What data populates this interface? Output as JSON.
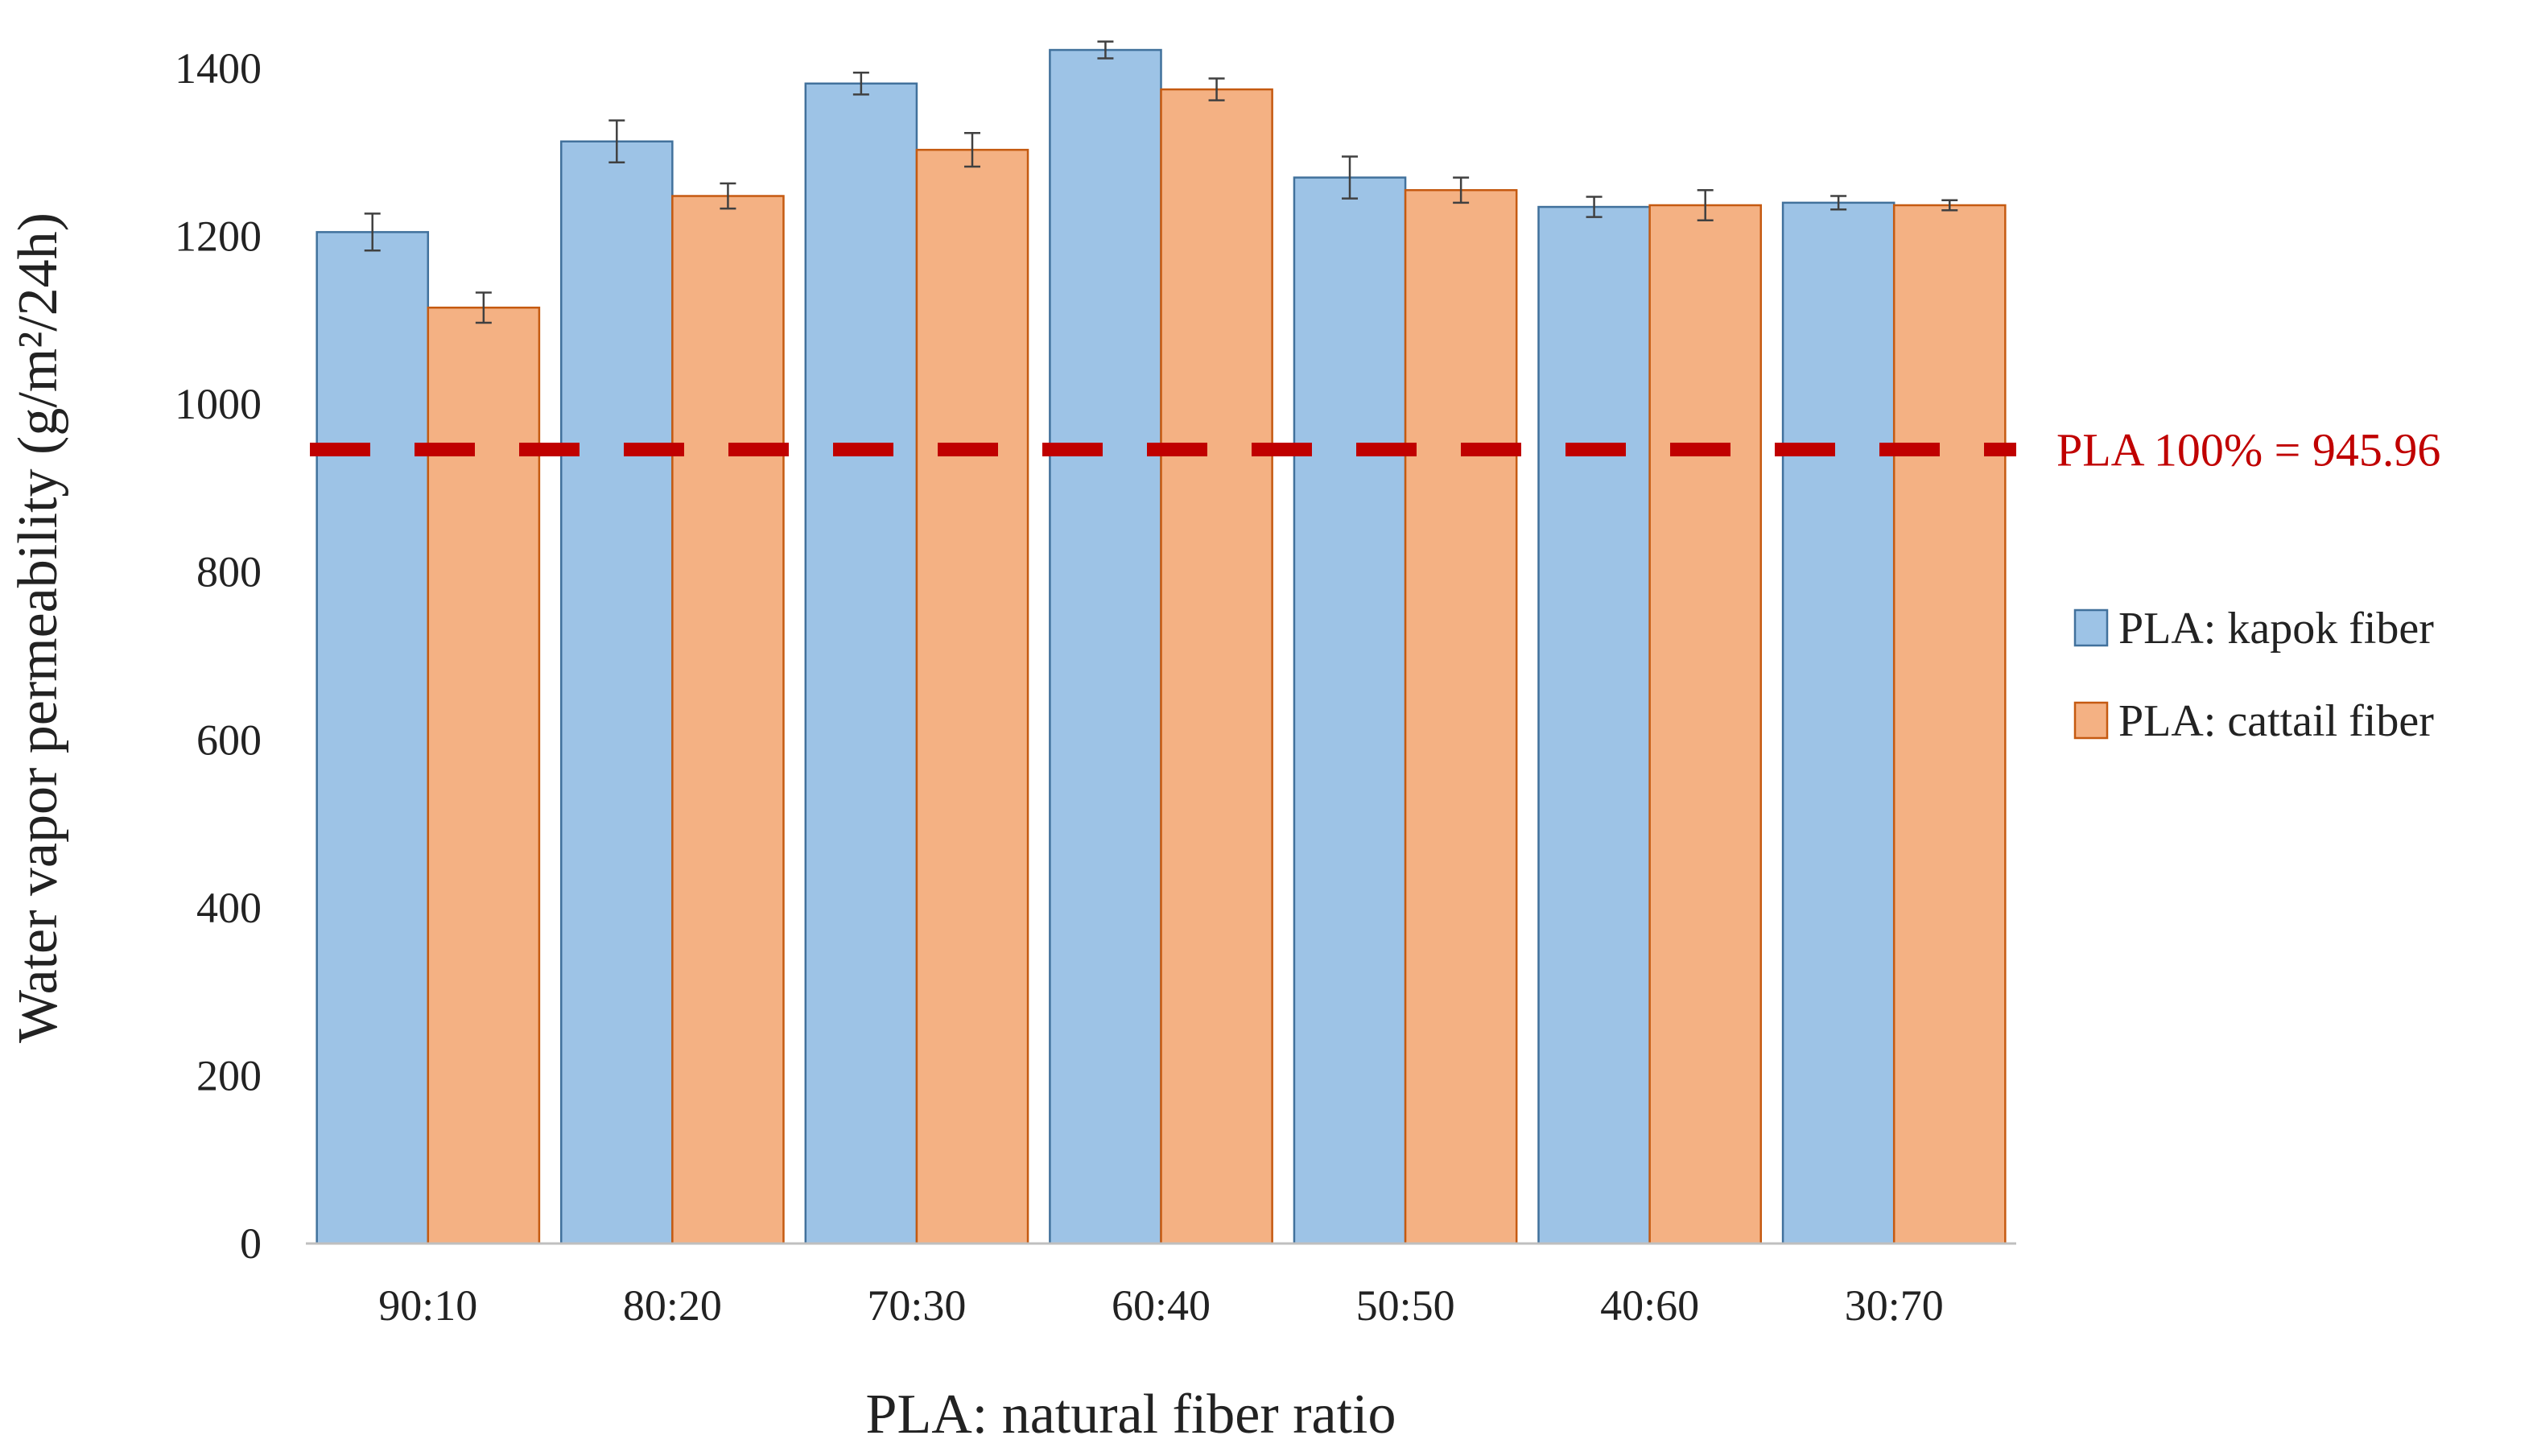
{
  "chart_data": {
    "type": "bar",
    "title": "",
    "xlabel": "PLA: natural fiber ratio",
    "ylabel": "Water vapor permeability (g/m²/24h)",
    "ylim": [
      0,
      1400
    ],
    "yticks": [
      0,
      200,
      400,
      600,
      800,
      1000,
      1200,
      1400
    ],
    "categories": [
      "90:10",
      "80:20",
      "70:30",
      "60:40",
      "50:50",
      "40:60",
      "30:70"
    ],
    "series": [
      {
        "name": "PLA: kapok fiber",
        "color": "#9DC3E6",
        "edge_color": "#41719C",
        "values": [
          1205,
          1313,
          1382,
          1422,
          1270,
          1235,
          1240
        ],
        "errors": [
          22,
          25,
          13,
          10,
          25,
          12,
          8
        ]
      },
      {
        "name": "PLA: cattail fiber",
        "color": "#F4B183",
        "edge_color": "#C55A11",
        "values": [
          1115,
          1248,
          1303,
          1375,
          1255,
          1237,
          1237
        ],
        "errors": [
          18,
          15,
          20,
          13,
          15,
          18,
          6
        ]
      }
    ],
    "reference_line": {
      "value": 945.96,
      "label": "PLA 100% = 945.96",
      "color": "#C00000"
    },
    "grid": false,
    "legend_position": "right"
  }
}
